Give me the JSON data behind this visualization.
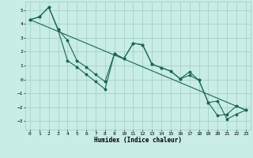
{
  "xlabel": "Humidex (Indice chaleur)",
  "xlim": [
    -0.5,
    23.5
  ],
  "ylim": [
    -3.6,
    5.6
  ],
  "yticks": [
    -3,
    -2,
    -1,
    0,
    1,
    2,
    3,
    4,
    5
  ],
  "xticks": [
    0,
    1,
    2,
    3,
    4,
    5,
    6,
    7,
    8,
    9,
    10,
    11,
    12,
    13,
    14,
    15,
    16,
    17,
    18,
    19,
    20,
    21,
    22,
    23
  ],
  "background_color": "#c8ece6",
  "grid_color": "#a0ccc4",
  "line_color": "#1a6655",
  "line1_y": [
    4.3,
    4.5,
    5.2,
    3.6,
    2.8,
    1.35,
    0.9,
    0.35,
    -0.15,
    1.85,
    1.5,
    2.6,
    2.5,
    1.1,
    0.85,
    0.6,
    0.05,
    0.55,
    -0.05,
    -1.65,
    -2.6,
    -2.5,
    -1.9,
    -2.2
  ],
  "line2_y": [
    4.3,
    4.5,
    5.2,
    3.55,
    1.35,
    0.9,
    0.35,
    -0.15,
    -0.7,
    1.85,
    1.5,
    2.6,
    2.5,
    1.1,
    0.85,
    0.6,
    0.05,
    0.3,
    -0.05,
    -1.65,
    -1.55,
    -2.85,
    -2.5,
    -2.2
  ],
  "line3_y": [
    4.3,
    4.3,
    5.2,
    3.6,
    2.8,
    1.9,
    1.5,
    0.85,
    0.35,
    0.9,
    1.5,
    1.5,
    1.5,
    0.6,
    0.6,
    0.3,
    -0.05,
    -0.4,
    -0.9,
    -1.4,
    -2.6,
    -2.85,
    -1.9,
    -2.2
  ]
}
